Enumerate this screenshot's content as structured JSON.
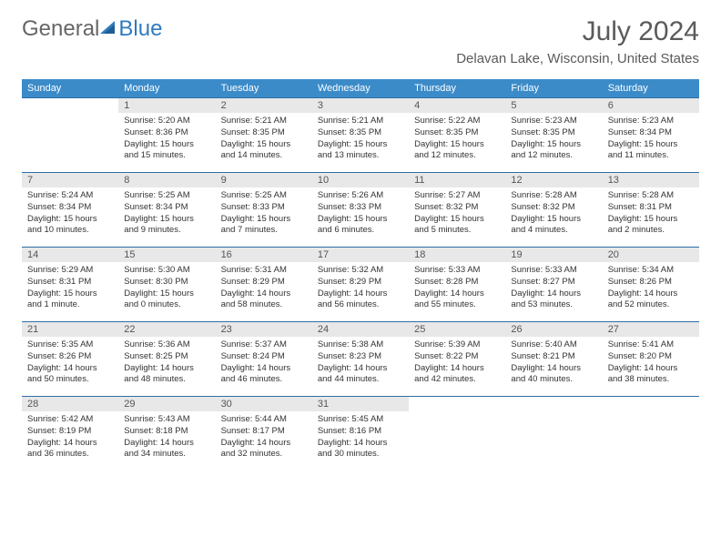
{
  "logo": {
    "part1": "General",
    "part2": "Blue"
  },
  "title": "July 2024",
  "location": "Delavan Lake, Wisconsin, United States",
  "header_bg_color": "#3b8bc9",
  "daynum_bg_color": "#e8e8e8",
  "row_border_color": "#2f6ea5",
  "dayNames": [
    "Sunday",
    "Monday",
    "Tuesday",
    "Wednesday",
    "Thursday",
    "Friday",
    "Saturday"
  ],
  "weeks": [
    [
      null,
      {
        "n": "1",
        "sr": "Sunrise: 5:20 AM",
        "ss": "Sunset: 8:36 PM",
        "dl": "Daylight: 15 hours and 15 minutes."
      },
      {
        "n": "2",
        "sr": "Sunrise: 5:21 AM",
        "ss": "Sunset: 8:35 PM",
        "dl": "Daylight: 15 hours and 14 minutes."
      },
      {
        "n": "3",
        "sr": "Sunrise: 5:21 AM",
        "ss": "Sunset: 8:35 PM",
        "dl": "Daylight: 15 hours and 13 minutes."
      },
      {
        "n": "4",
        "sr": "Sunrise: 5:22 AM",
        "ss": "Sunset: 8:35 PM",
        "dl": "Daylight: 15 hours and 12 minutes."
      },
      {
        "n": "5",
        "sr": "Sunrise: 5:23 AM",
        "ss": "Sunset: 8:35 PM",
        "dl": "Daylight: 15 hours and 12 minutes."
      },
      {
        "n": "6",
        "sr": "Sunrise: 5:23 AM",
        "ss": "Sunset: 8:34 PM",
        "dl": "Daylight: 15 hours and 11 minutes."
      }
    ],
    [
      {
        "n": "7",
        "sr": "Sunrise: 5:24 AM",
        "ss": "Sunset: 8:34 PM",
        "dl": "Daylight: 15 hours and 10 minutes."
      },
      {
        "n": "8",
        "sr": "Sunrise: 5:25 AM",
        "ss": "Sunset: 8:34 PM",
        "dl": "Daylight: 15 hours and 9 minutes."
      },
      {
        "n": "9",
        "sr": "Sunrise: 5:25 AM",
        "ss": "Sunset: 8:33 PM",
        "dl": "Daylight: 15 hours and 7 minutes."
      },
      {
        "n": "10",
        "sr": "Sunrise: 5:26 AM",
        "ss": "Sunset: 8:33 PM",
        "dl": "Daylight: 15 hours and 6 minutes."
      },
      {
        "n": "11",
        "sr": "Sunrise: 5:27 AM",
        "ss": "Sunset: 8:32 PM",
        "dl": "Daylight: 15 hours and 5 minutes."
      },
      {
        "n": "12",
        "sr": "Sunrise: 5:28 AM",
        "ss": "Sunset: 8:32 PM",
        "dl": "Daylight: 15 hours and 4 minutes."
      },
      {
        "n": "13",
        "sr": "Sunrise: 5:28 AM",
        "ss": "Sunset: 8:31 PM",
        "dl": "Daylight: 15 hours and 2 minutes."
      }
    ],
    [
      {
        "n": "14",
        "sr": "Sunrise: 5:29 AM",
        "ss": "Sunset: 8:31 PM",
        "dl": "Daylight: 15 hours and 1 minute."
      },
      {
        "n": "15",
        "sr": "Sunrise: 5:30 AM",
        "ss": "Sunset: 8:30 PM",
        "dl": "Daylight: 15 hours and 0 minutes."
      },
      {
        "n": "16",
        "sr": "Sunrise: 5:31 AM",
        "ss": "Sunset: 8:29 PM",
        "dl": "Daylight: 14 hours and 58 minutes."
      },
      {
        "n": "17",
        "sr": "Sunrise: 5:32 AM",
        "ss": "Sunset: 8:29 PM",
        "dl": "Daylight: 14 hours and 56 minutes."
      },
      {
        "n": "18",
        "sr": "Sunrise: 5:33 AM",
        "ss": "Sunset: 8:28 PM",
        "dl": "Daylight: 14 hours and 55 minutes."
      },
      {
        "n": "19",
        "sr": "Sunrise: 5:33 AM",
        "ss": "Sunset: 8:27 PM",
        "dl": "Daylight: 14 hours and 53 minutes."
      },
      {
        "n": "20",
        "sr": "Sunrise: 5:34 AM",
        "ss": "Sunset: 8:26 PM",
        "dl": "Daylight: 14 hours and 52 minutes."
      }
    ],
    [
      {
        "n": "21",
        "sr": "Sunrise: 5:35 AM",
        "ss": "Sunset: 8:26 PM",
        "dl": "Daylight: 14 hours and 50 minutes."
      },
      {
        "n": "22",
        "sr": "Sunrise: 5:36 AM",
        "ss": "Sunset: 8:25 PM",
        "dl": "Daylight: 14 hours and 48 minutes."
      },
      {
        "n": "23",
        "sr": "Sunrise: 5:37 AM",
        "ss": "Sunset: 8:24 PM",
        "dl": "Daylight: 14 hours and 46 minutes."
      },
      {
        "n": "24",
        "sr": "Sunrise: 5:38 AM",
        "ss": "Sunset: 8:23 PM",
        "dl": "Daylight: 14 hours and 44 minutes."
      },
      {
        "n": "25",
        "sr": "Sunrise: 5:39 AM",
        "ss": "Sunset: 8:22 PM",
        "dl": "Daylight: 14 hours and 42 minutes."
      },
      {
        "n": "26",
        "sr": "Sunrise: 5:40 AM",
        "ss": "Sunset: 8:21 PM",
        "dl": "Daylight: 14 hours and 40 minutes."
      },
      {
        "n": "27",
        "sr": "Sunrise: 5:41 AM",
        "ss": "Sunset: 8:20 PM",
        "dl": "Daylight: 14 hours and 38 minutes."
      }
    ],
    [
      {
        "n": "28",
        "sr": "Sunrise: 5:42 AM",
        "ss": "Sunset: 8:19 PM",
        "dl": "Daylight: 14 hours and 36 minutes."
      },
      {
        "n": "29",
        "sr": "Sunrise: 5:43 AM",
        "ss": "Sunset: 8:18 PM",
        "dl": "Daylight: 14 hours and 34 minutes."
      },
      {
        "n": "30",
        "sr": "Sunrise: 5:44 AM",
        "ss": "Sunset: 8:17 PM",
        "dl": "Daylight: 14 hours and 32 minutes."
      },
      {
        "n": "31",
        "sr": "Sunrise: 5:45 AM",
        "ss": "Sunset: 8:16 PM",
        "dl": "Daylight: 14 hours and 30 minutes."
      },
      null,
      null,
      null
    ]
  ]
}
